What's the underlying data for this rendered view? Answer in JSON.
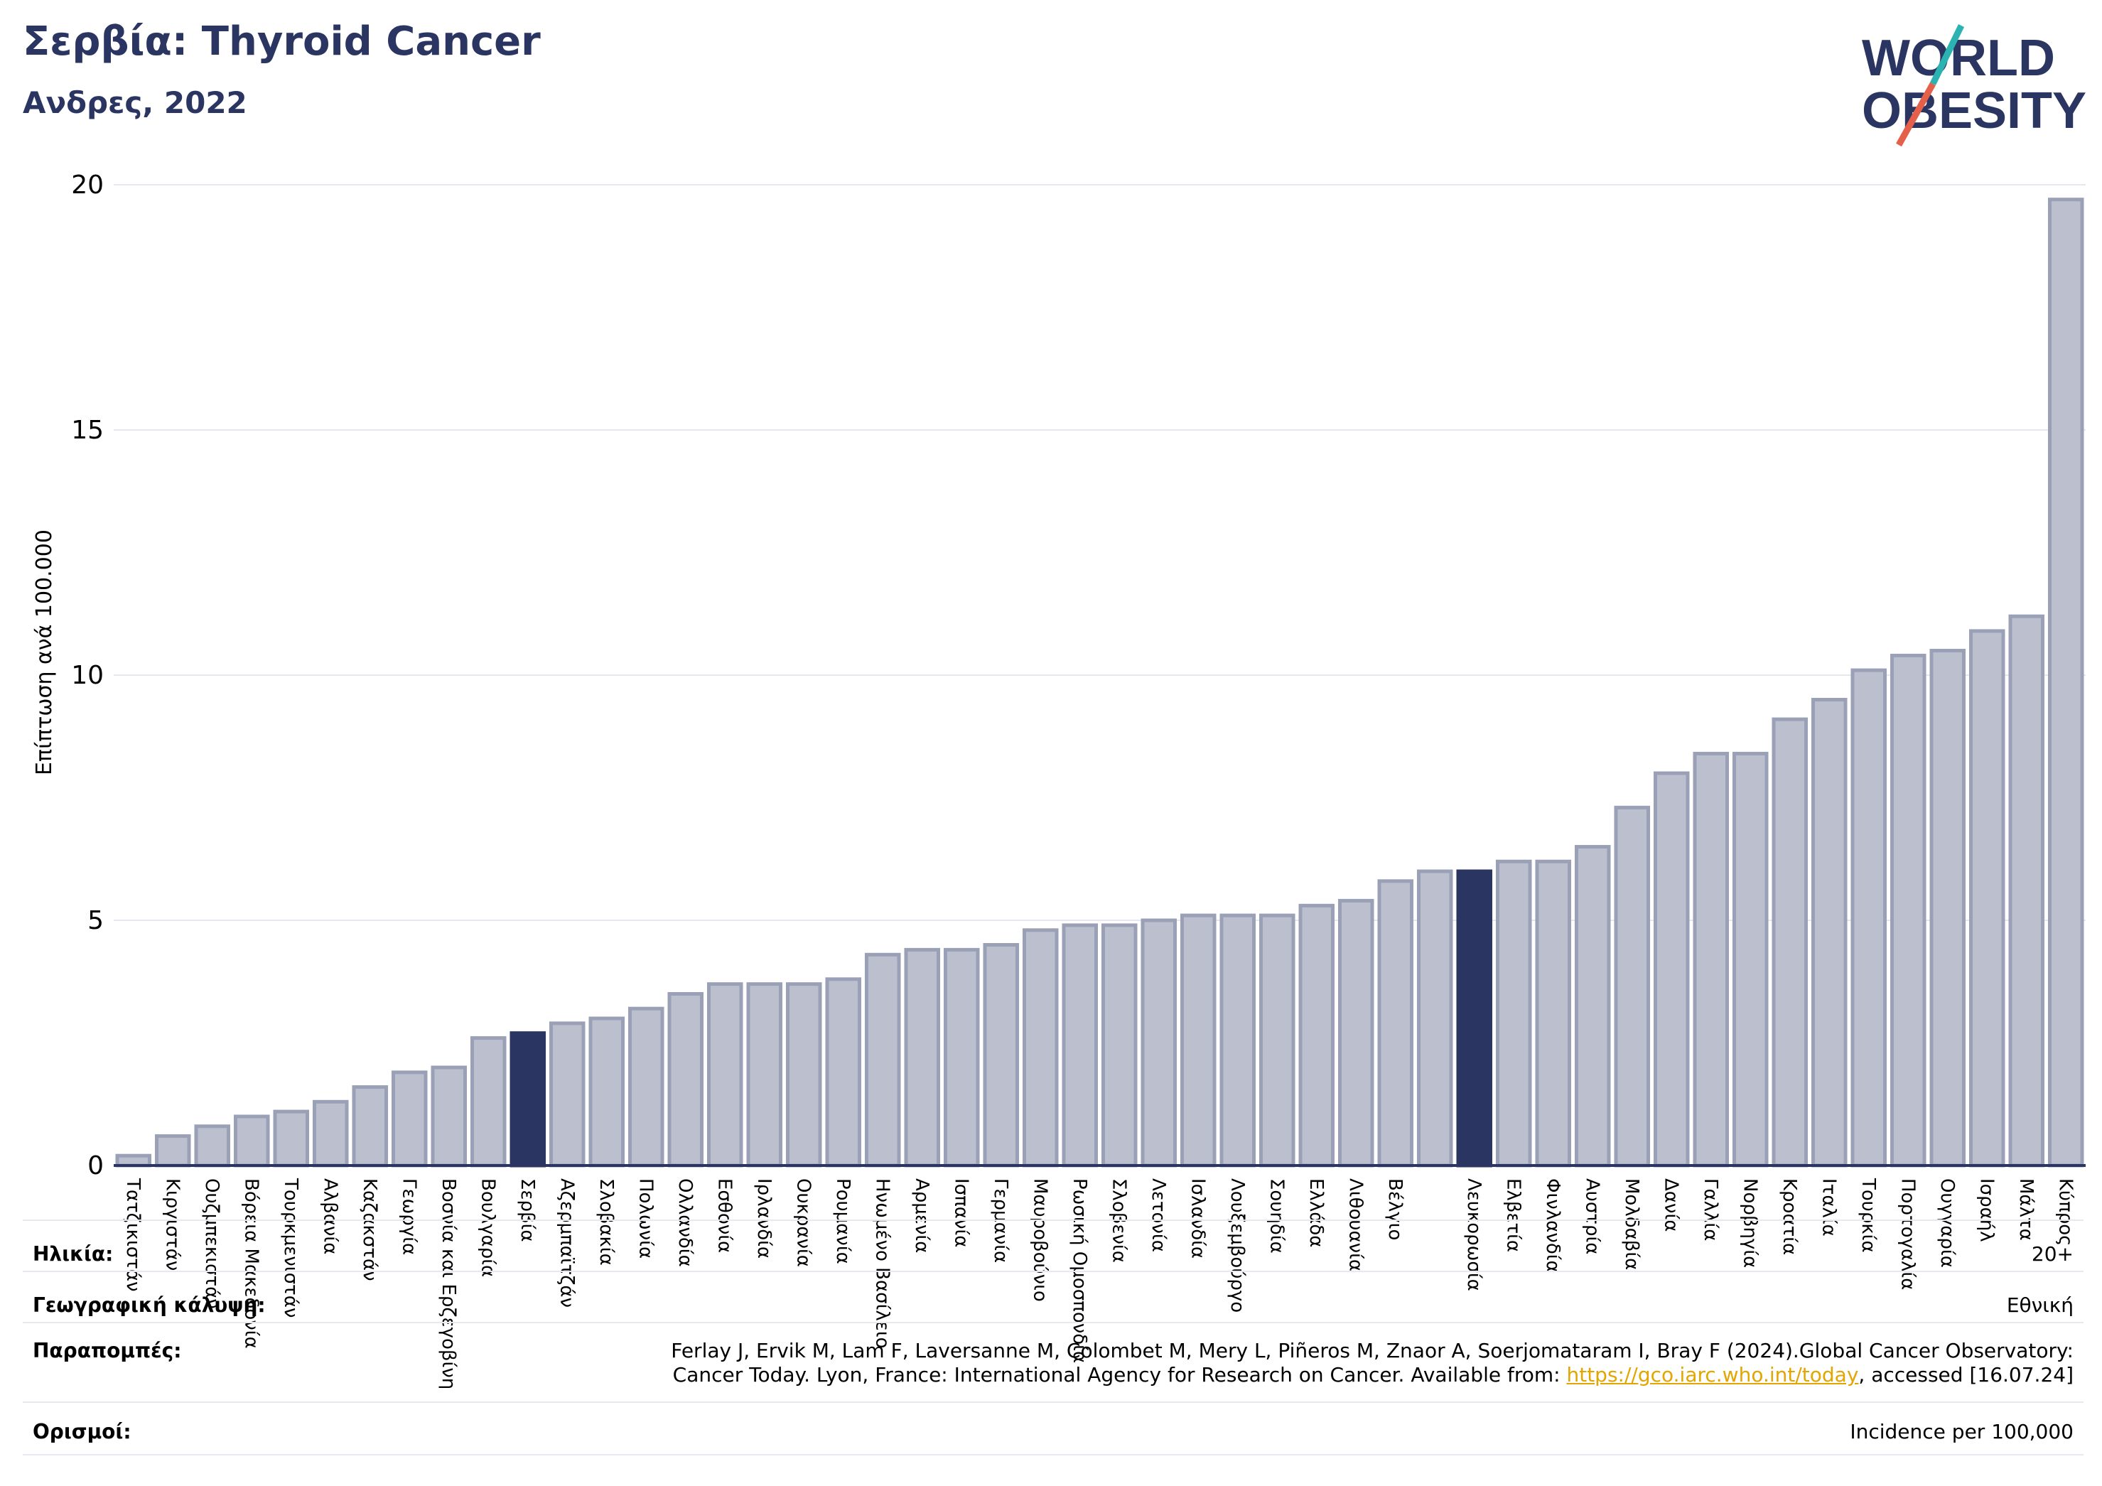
{
  "header": {
    "title": "Σερβία: Thyroid Cancer",
    "subtitle": "Ανδρες, 2022"
  },
  "logo": {
    "line1": "WORLD",
    "line2": "OBESITY",
    "accent": "#2bb3b1",
    "slash": "#e5604a",
    "brand": "#2a3562"
  },
  "colors": {
    "bar": "#bcc0ce",
    "bar_border": "#9aa0b5",
    "highlight": "#2a3562",
    "grid": "#e6e8ef",
    "axis": "#2a3562"
  },
  "chart_data": {
    "type": "bar",
    "ylabel": "Επίπτωση ανά 100.000",
    "ylim": [
      0,
      20
    ],
    "yticks": [
      0,
      5,
      10,
      15,
      20
    ],
    "grid": true,
    "highlight": [
      "Σερβία",
      "Λευκορωσία"
    ],
    "categories": [
      "Τατζικιστάν",
      "Κιργιστάν",
      "Ουζμπεκιστάν",
      "Βόρεια Μακεδονία",
      "Τουρκμενιστάν",
      "Αλβανία",
      "Καζακστάν",
      "Γεωργία",
      "Βοσνία και Ερζεγοβίνη",
      "Βουλγαρία",
      "Σερβία",
      "Αζερμπαϊτζάν",
      "Σλοβακία",
      "Πολωνία",
      "Ολλανδία",
      "Εσθονία",
      "Ιρλανδία",
      "Ουκρανία",
      "Ρουμανία",
      "Ηνωμένο Βασίλειο",
      "Αρμενία",
      "Ισπανία",
      "Γερμανία",
      "Μαυροβούνιο",
      "Ρωσική Ομοσπονδία",
      "Σλοβενία",
      "Λετονία",
      "Ισλανδία",
      "Λουξεμβούργο",
      "Σουηδία",
      "Ελλάδα",
      "Λιθουανία",
      "Βέλγιο",
      "",
      "Λευκορωσία",
      "Ελβετία",
      "Φινλανδία",
      "Αυστρία",
      "Μολδαβία",
      "Δανία",
      "Γαλλία",
      "Νορβηγία",
      "Κροατία",
      "Ιταλία",
      "Τουρκία",
      "Πορτογαλία",
      "Ουγγαρία",
      "Ισραήλ",
      "Μάλτα",
      "Κύπρος"
    ],
    "values": [
      0.2,
      0.6,
      0.8,
      1.0,
      1.1,
      1.3,
      1.6,
      1.9,
      2.0,
      2.6,
      2.7,
      2.9,
      3.0,
      3.2,
      3.5,
      3.7,
      3.7,
      3.7,
      3.8,
      4.3,
      4.4,
      4.4,
      4.5,
      4.8,
      4.9,
      4.9,
      5.0,
      5.1,
      5.1,
      5.1,
      5.3,
      5.4,
      5.8,
      6.0,
      6.0,
      6.2,
      6.2,
      6.5,
      7.3,
      8.0,
      8.4,
      8.4,
      9.1,
      9.5,
      10.1,
      10.4,
      10.5,
      10.9,
      11.2,
      19.7
    ]
  },
  "footer": {
    "age_label": "Ηλικία:",
    "age_value": "20+",
    "geo_label": "Γεωγραφική κάλυψη:",
    "geo_value": "Εθνική",
    "ref_label": "Παραπομπές:",
    "ref_line1": "Ferlay J, Ervik M, Lam F, Laversanne M, Colombet M, Mery L, Piñeros M, Znaor A, Soerjomataram I, Bray F (2024).Global Cancer Observatory:",
    "ref_line2_pre": "Cancer Today. Lyon, France: International Agency for Research on Cancer. Available from: ",
    "ref_link": "https://gco.iarc.who.int/today",
    "ref_line2_post": ", accessed [16.07.24]",
    "def_label": "Ορισμοί:",
    "def_value": "Incidence per 100,000"
  }
}
